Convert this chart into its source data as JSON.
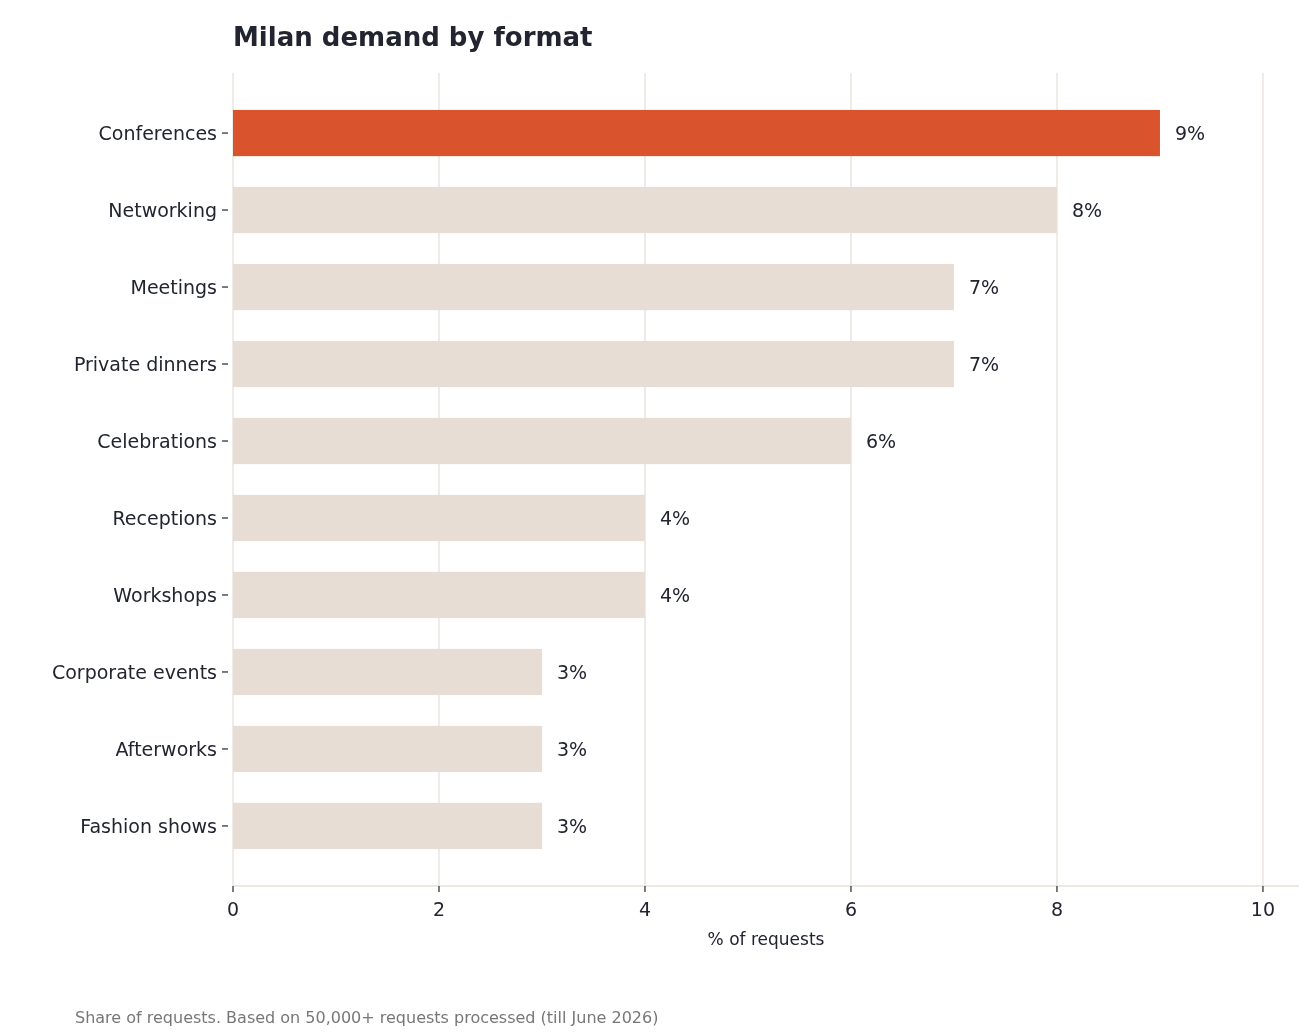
{
  "chart_data": {
    "type": "bar",
    "orientation": "horizontal",
    "title": "Milan demand by format",
    "xlabel": "% of requests",
    "categories": [
      "Conferences",
      "Networking",
      "Meetings",
      "Private dinners",
      "Celebrations",
      "Receptions",
      "Workshops",
      "Corporate events",
      "Afterworks",
      "Fashion shows"
    ],
    "values": [
      9,
      8,
      7,
      7,
      6,
      4,
      4,
      3,
      3,
      3
    ],
    "colors": [
      "#d9532c",
      "#e7ddd4",
      "#e7ddd4",
      "#e7ddd4",
      "#e7ddd4",
      "#e7ddd4",
      "#e7ddd4",
      "#e7ddd4",
      "#e7ddd4",
      "#e7ddd4"
    ],
    "value_labels": [
      "9%",
      "8%",
      "7%",
      "7%",
      "6%",
      "4%",
      "4%",
      "3%",
      "3%",
      "3%"
    ],
    "xlim": [
      0,
      10.35
    ],
    "xticks": [
      0,
      2,
      4,
      6,
      8,
      10
    ],
    "grid": "x",
    "annotations": [
      "Share of requests. Based on 50,000+ requests processed (till June 2026)"
    ]
  }
}
